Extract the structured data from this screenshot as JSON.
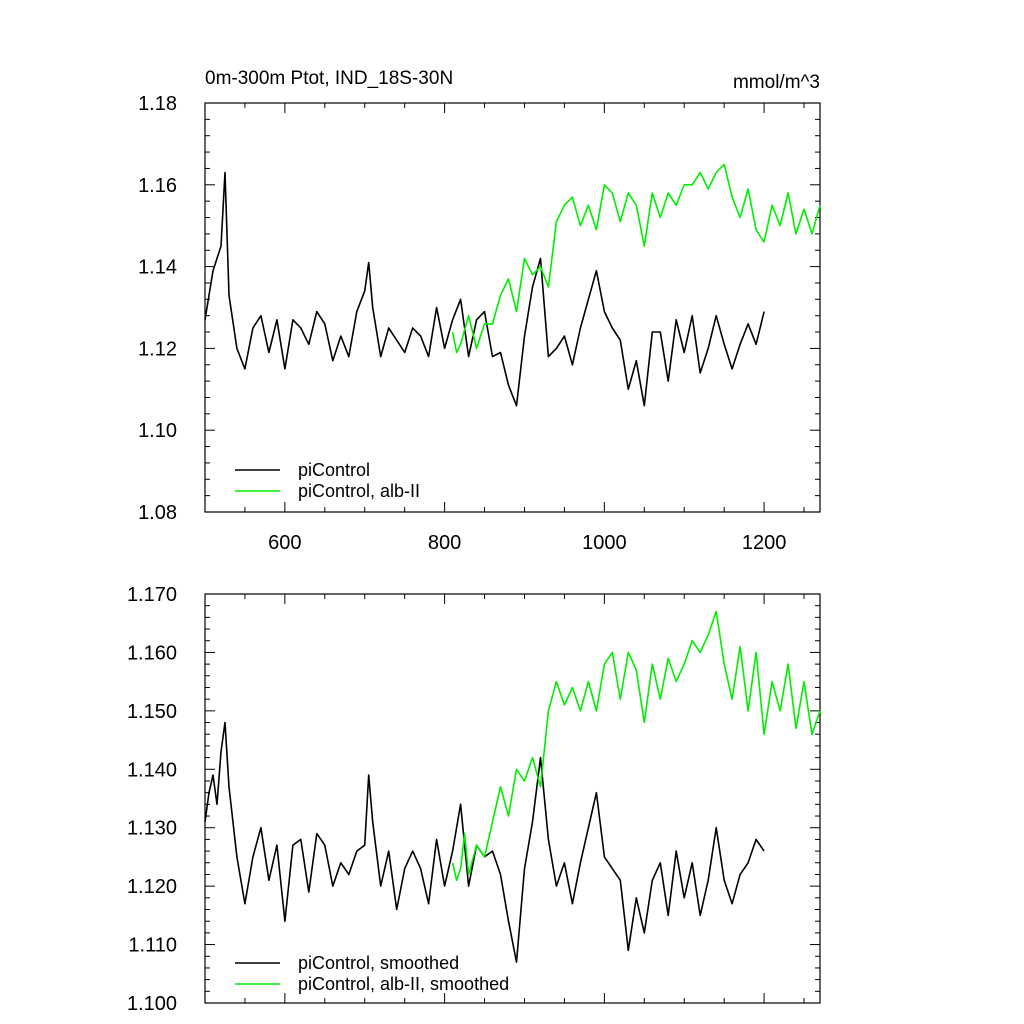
{
  "chart_data": [
    {
      "type": "line",
      "title_left": "0m-300m Ptot, IND_18S-30N",
      "title_right": "mmol/m^3",
      "xlim": [
        500,
        1270
      ],
      "ylim": [
        1.08,
        1.18
      ],
      "xticks": [
        600,
        800,
        1000,
        1200
      ],
      "xtick_labels": [
        "600",
        "800",
        "1000",
        "1200"
      ],
      "show_xtick_labels": true,
      "yticks": [
        1.08,
        1.1,
        1.12,
        1.14,
        1.16,
        1.18
      ],
      "ytick_labels": [
        "1.08",
        "1.10",
        "1.12",
        "1.14",
        "1.16",
        "1.18"
      ],
      "legend_position": "bottom-left",
      "series": [
        {
          "name": "piControl",
          "color": "#000000",
          "x": [
            500,
            510,
            520,
            525,
            530,
            540,
            550,
            560,
            570,
            580,
            590,
            600,
            610,
            620,
            630,
            640,
            650,
            660,
            670,
            680,
            690,
            700,
            705,
            710,
            720,
            730,
            740,
            750,
            760,
            770,
            780,
            790,
            800,
            810,
            820,
            830,
            840,
            850,
            860,
            870,
            880,
            890,
            900,
            910,
            920,
            930,
            940,
            950,
            960,
            970,
            980,
            990,
            1000,
            1010,
            1020,
            1030,
            1040,
            1050,
            1060,
            1070,
            1080,
            1090,
            1100,
            1110,
            1120,
            1130,
            1140,
            1150,
            1160,
            1170,
            1180,
            1190,
            1200
          ],
          "values": [
            1.127,
            1.139,
            1.145,
            1.163,
            1.133,
            1.12,
            1.115,
            1.125,
            1.128,
            1.119,
            1.127,
            1.115,
            1.127,
            1.125,
            1.121,
            1.129,
            1.126,
            1.117,
            1.123,
            1.118,
            1.129,
            1.134,
            1.141,
            1.13,
            1.118,
            1.125,
            1.122,
            1.119,
            1.125,
            1.123,
            1.118,
            1.13,
            1.12,
            1.127,
            1.132,
            1.118,
            1.127,
            1.129,
            1.118,
            1.119,
            1.111,
            1.106,
            1.123,
            1.135,
            1.142,
            1.118,
            1.12,
            1.123,
            1.116,
            1.125,
            1.132,
            1.139,
            1.129,
            1.125,
            1.122,
            1.11,
            1.117,
            1.106,
            1.124,
            1.124,
            1.112,
            1.127,
            1.119,
            1.128,
            1.114,
            1.12,
            1.128,
            1.121,
            1.115,
            1.121,
            1.126,
            1.121,
            1.129
          ]
        },
        {
          "name": "piControl, alb-II",
          "color": "#00ee00",
          "x": [
            810,
            815,
            820,
            830,
            840,
            850,
            860,
            870,
            880,
            890,
            900,
            910,
            920,
            930,
            940,
            950,
            960,
            970,
            980,
            990,
            1000,
            1010,
            1020,
            1030,
            1040,
            1050,
            1060,
            1070,
            1080,
            1090,
            1100,
            1110,
            1120,
            1130,
            1140,
            1150,
            1160,
            1170,
            1180,
            1190,
            1200,
            1210,
            1220,
            1230,
            1240,
            1250,
            1260,
            1270
          ],
          "values": [
            1.124,
            1.119,
            1.121,
            1.128,
            1.12,
            1.126,
            1.126,
            1.133,
            1.137,
            1.129,
            1.142,
            1.138,
            1.14,
            1.135,
            1.151,
            1.155,
            1.157,
            1.15,
            1.155,
            1.149,
            1.16,
            1.158,
            1.151,
            1.158,
            1.155,
            1.145,
            1.158,
            1.152,
            1.158,
            1.155,
            1.16,
            1.16,
            1.163,
            1.159,
            1.163,
            1.165,
            1.157,
            1.152,
            1.159,
            1.149,
            1.146,
            1.155,
            1.15,
            1.158,
            1.148,
            1.154,
            1.148,
            1.155
          ]
        }
      ]
    },
    {
      "type": "line",
      "xlim": [
        500,
        1270
      ],
      "ylim": [
        1.1,
        1.17
      ],
      "xticks": [
        600,
        800,
        1000,
        1200
      ],
      "show_xtick_labels": false,
      "yticks": [
        1.1,
        1.11,
        1.12,
        1.13,
        1.14,
        1.15,
        1.16,
        1.17
      ],
      "ytick_labels": [
        "1.100",
        "1.110",
        "1.120",
        "1.130",
        "1.140",
        "1.150",
        "1.160",
        "1.170"
      ],
      "legend_position": "bottom-left",
      "series": [
        {
          "name": "piControl, smoothed",
          "color": "#000000",
          "x": [
            500,
            505,
            510,
            515,
            520,
            525,
            530,
            540,
            550,
            560,
            570,
            580,
            590,
            600,
            610,
            620,
            630,
            640,
            650,
            660,
            670,
            680,
            690,
            700,
            705,
            710,
            720,
            730,
            740,
            750,
            760,
            770,
            780,
            790,
            800,
            810,
            820,
            830,
            840,
            850,
            860,
            870,
            880,
            890,
            900,
            910,
            920,
            930,
            940,
            950,
            960,
            970,
            980,
            990,
            1000,
            1010,
            1020,
            1030,
            1040,
            1050,
            1060,
            1070,
            1080,
            1090,
            1100,
            1110,
            1120,
            1130,
            1140,
            1150,
            1160,
            1170,
            1180,
            1190,
            1200
          ],
          "values": [
            1.131,
            1.136,
            1.139,
            1.134,
            1.143,
            1.148,
            1.137,
            1.125,
            1.117,
            1.125,
            1.13,
            1.121,
            1.127,
            1.114,
            1.127,
            1.128,
            1.119,
            1.129,
            1.127,
            1.12,
            1.124,
            1.122,
            1.126,
            1.127,
            1.139,
            1.131,
            1.12,
            1.126,
            1.116,
            1.123,
            1.126,
            1.123,
            1.117,
            1.128,
            1.12,
            1.126,
            1.134,
            1.12,
            1.127,
            1.125,
            1.126,
            1.122,
            1.114,
            1.107,
            1.123,
            1.131,
            1.142,
            1.128,
            1.12,
            1.124,
            1.117,
            1.124,
            1.13,
            1.136,
            1.125,
            1.123,
            1.121,
            1.109,
            1.118,
            1.112,
            1.121,
            1.124,
            1.115,
            1.126,
            1.118,
            1.124,
            1.115,
            1.121,
            1.13,
            1.121,
            1.117,
            1.122,
            1.124,
            1.128,
            1.126
          ]
        },
        {
          "name": "piControl, alb-II, smoothed",
          "color": "#00ee00",
          "x": [
            810,
            815,
            820,
            825,
            830,
            840,
            850,
            860,
            870,
            880,
            890,
            900,
            910,
            920,
            930,
            940,
            950,
            960,
            970,
            980,
            990,
            1000,
            1010,
            1020,
            1030,
            1040,
            1050,
            1060,
            1070,
            1080,
            1090,
            1100,
            1110,
            1120,
            1130,
            1140,
            1150,
            1160,
            1170,
            1180,
            1190,
            1200,
            1210,
            1220,
            1230,
            1240,
            1250,
            1260,
            1270
          ],
          "values": [
            1.124,
            1.121,
            1.123,
            1.129,
            1.122,
            1.127,
            1.125,
            1.131,
            1.137,
            1.132,
            1.14,
            1.138,
            1.142,
            1.137,
            1.15,
            1.155,
            1.151,
            1.154,
            1.15,
            1.155,
            1.15,
            1.158,
            1.16,
            1.152,
            1.16,
            1.157,
            1.148,
            1.158,
            1.152,
            1.159,
            1.155,
            1.158,
            1.162,
            1.16,
            1.163,
            1.167,
            1.158,
            1.152,
            1.161,
            1.15,
            1.16,
            1.146,
            1.155,
            1.15,
            1.158,
            1.147,
            1.155,
            1.146,
            1.15
          ]
        }
      ]
    }
  ]
}
